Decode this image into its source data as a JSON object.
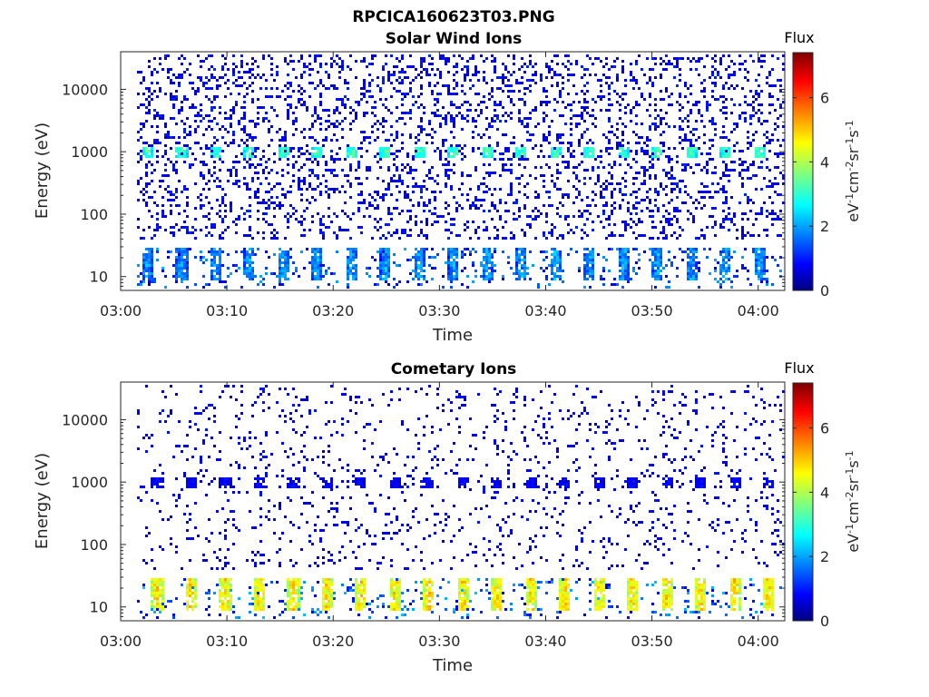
{
  "figure": {
    "title": "RPCICA160623T03.PNG"
  },
  "chart_data": [
    {
      "type": "heatmap",
      "title": "Solar Wind Ions",
      "xlabel": "Time",
      "ylabel": "Energy (eV)",
      "x_ticks": [
        "03:00",
        "03:10",
        "03:20",
        "03:30",
        "03:40",
        "03:50",
        "04:00"
      ],
      "x_range_minutes": [
        0,
        62.5
      ],
      "y_scale": "log",
      "y_ticks": [
        "10",
        "100",
        "1000",
        "10000"
      ],
      "y_tick_values": [
        10,
        100,
        1000,
        10000
      ],
      "y_range": [
        6,
        40000
      ],
      "data_start_minute": 1.5,
      "colorbar": {
        "title": "Flux",
        "label": "eV-1cm-2sr-1s-1",
        "ticks": [
          "0",
          "2",
          "4",
          "6"
        ],
        "range": [
          0,
          7.4
        ],
        "colormap": "jet"
      },
      "bursts": {
        "period_minutes": 3.2,
        "first_minute": 2.4,
        "count": 19,
        "bands": [
          {
            "energy_low": 800,
            "energy_high": 1250,
            "flux_low": 2.3,
            "flux_high": 3.8
          },
          {
            "energy_low": 9,
            "energy_high": 30,
            "flux_low": 1.0,
            "flux_high": 2.6
          }
        ]
      },
      "background_noise": {
        "energy_min": 40,
        "energy_max": 38000,
        "flux_low": 0.5,
        "flux_high": 1.2,
        "density": 0.2
      },
      "low_energy_noise": {
        "energy_min": 6,
        "energy_max": 30,
        "flux_low": 0.6,
        "flux_high": 2.2,
        "density": 0.12
      },
      "grid": false
    },
    {
      "type": "heatmap",
      "title": "Cometary Ions",
      "xlabel": "Time",
      "ylabel": "Energy (eV)",
      "x_ticks": [
        "03:00",
        "03:10",
        "03:20",
        "03:30",
        "03:40",
        "03:50",
        "04:00"
      ],
      "x_range_minutes": [
        0,
        62.5
      ],
      "y_scale": "log",
      "y_ticks": [
        "10",
        "100",
        "1000",
        "10000"
      ],
      "y_tick_values": [
        10,
        100,
        1000,
        10000
      ],
      "y_range": [
        6,
        40000
      ],
      "data_start_minute": 1.5,
      "colorbar": {
        "title": "Flux",
        "label": "eV-1cm-2sr-1s-1",
        "ticks": [
          "0",
          "2",
          "4",
          "6"
        ],
        "range": [
          0,
          7.4
        ],
        "colormap": "jet"
      },
      "bursts": {
        "period_minutes": 3.2,
        "first_minute": 3.3,
        "count": 19,
        "bands": [
          {
            "energy_low": 9,
            "energy_high": 30,
            "flux_low": 3.6,
            "flux_high": 5.4
          },
          {
            "energy_low": 800,
            "energy_high": 1250,
            "flux_low": 0.5,
            "flux_high": 1.2
          }
        ]
      },
      "background_noise": {
        "energy_min": 40,
        "energy_max": 38000,
        "flux_low": 0.5,
        "flux_high": 1.1,
        "density": 0.08
      },
      "low_energy_noise": {
        "energy_min": 6,
        "energy_max": 30,
        "flux_low": 0.6,
        "flux_high": 2.4,
        "density": 0.1
      },
      "grid": false
    }
  ]
}
